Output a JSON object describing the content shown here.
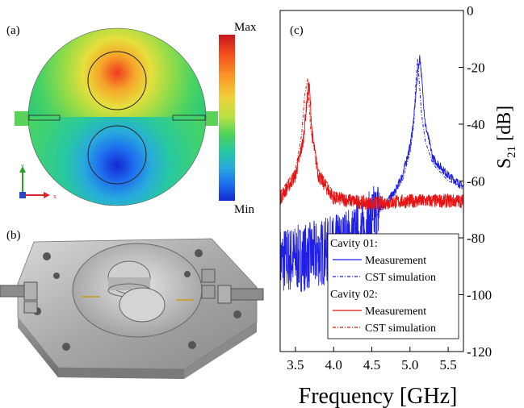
{
  "panels": {
    "a": {
      "label": "(a)",
      "colorbar_max": "Max",
      "colorbar_min": "Min",
      "axis_y": "y",
      "axis_x": "x",
      "colorbar_colors": [
        "#c8141e",
        "#f5501e",
        "#fa9628",
        "#f0d23c",
        "#b4e146",
        "#50d25a",
        "#28c8a0",
        "#28aadc",
        "#1e6ef0",
        "#1428d2"
      ]
    },
    "b": {
      "label": "(b)"
    },
    "c": {
      "label": "(c)"
    }
  },
  "chart_data": {
    "type": "line",
    "xlabel": "Frequency [GHz]",
    "ylabel": "S21 [dB]",
    "xlim": [
      3.3,
      5.7
    ],
    "ylim": [
      -120,
      0
    ],
    "x_ticks": [
      3.5,
      4.0,
      4.5,
      5.0,
      5.5
    ],
    "x_tick_labels": [
      "3.5",
      "4.0",
      "4.5",
      "5.0",
      "5.5"
    ],
    "y_ticks": [
      0,
      -20,
      -40,
      -60,
      -80,
      -100,
      -120
    ],
    "y_tick_labels": [
      "0",
      "-20",
      "-40",
      "-60",
      "-80",
      "-100",
      "-120"
    ],
    "grid": false,
    "legend_position": "bottom-right",
    "series": [
      {
        "group": "Cavity 01",
        "name": "Measurement",
        "color": "#1f1fe6",
        "style": "solid",
        "noisy": true,
        "x": [
          3.3,
          3.6,
          4.0,
          4.4,
          4.6,
          4.8,
          4.9,
          5.0,
          5.05,
          5.1,
          5.13,
          5.2,
          5.3,
          5.5,
          5.7
        ],
        "y": [
          -88,
          -87,
          -84,
          -78,
          -70,
          -64,
          -58,
          -48,
          -38,
          -22,
          -16,
          -40,
          -52,
          -58,
          -62
        ]
      },
      {
        "group": "Cavity 01",
        "name": "CST simulation",
        "color": "#1f1fe6",
        "style": "dash-dot",
        "noisy": false,
        "x": [
          4.5,
          4.7,
          4.9,
          5.0,
          5.05,
          5.08,
          5.1,
          5.15,
          5.2,
          5.3,
          5.5,
          5.7
        ],
        "y": [
          -74,
          -68,
          -60,
          -50,
          -40,
          -24,
          -17,
          -36,
          -46,
          -54,
          -60,
          -62
        ]
      },
      {
        "group": "Cavity 02",
        "name": "Measurement",
        "color": "#e61414",
        "style": "solid",
        "noisy": true,
        "x": [
          3.3,
          3.5,
          3.6,
          3.65,
          3.68,
          3.72,
          3.8,
          4.0,
          4.5,
          5.0,
          5.5,
          5.7
        ],
        "y": [
          -66,
          -58,
          -46,
          -32,
          -26,
          -44,
          -58,
          -66,
          -68,
          -67,
          -67,
          -67
        ]
      },
      {
        "group": "Cavity 02",
        "name": "CST simulation",
        "color": "#e61414",
        "style": "dash-dot",
        "noisy": false,
        "x": [
          3.3,
          3.5,
          3.58,
          3.62,
          3.66,
          3.7,
          3.8,
          4.0,
          4.5
        ],
        "y": [
          -64,
          -56,
          -44,
          -30,
          -24,
          -42,
          -56,
          -64,
          -68
        ]
      }
    ],
    "legend": {
      "groups": [
        {
          "title": "Cavity 01:",
          "entries": [
            "Measurement",
            "CST simulation"
          ]
        },
        {
          "title": "Cavity 02:",
          "entries": [
            "Measurement",
            "CST simulation"
          ]
        }
      ]
    }
  }
}
